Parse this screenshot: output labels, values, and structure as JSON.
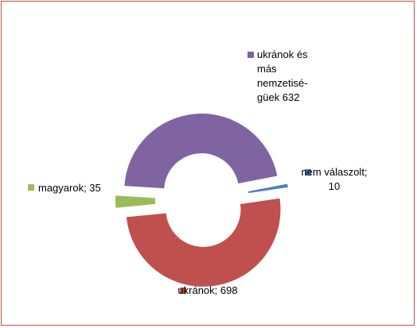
{
  "chart_data": {
    "type": "doughnut",
    "categories": [
      "nem válaszolt",
      "ukránok",
      "magyarok",
      "ukránok és más nemzetisé-güek"
    ],
    "values": [
      10,
      698,
      35,
      632
    ],
    "value_labels": [
      "nem válaszolt; 10",
      "ukránok; 698",
      "magyarok; 35",
      "ukránok és más nemzetisé-güek 632"
    ],
    "colors": [
      "#4f81bd",
      "#c0504d",
      "#9bbb59",
      "#8064a2"
    ]
  }
}
